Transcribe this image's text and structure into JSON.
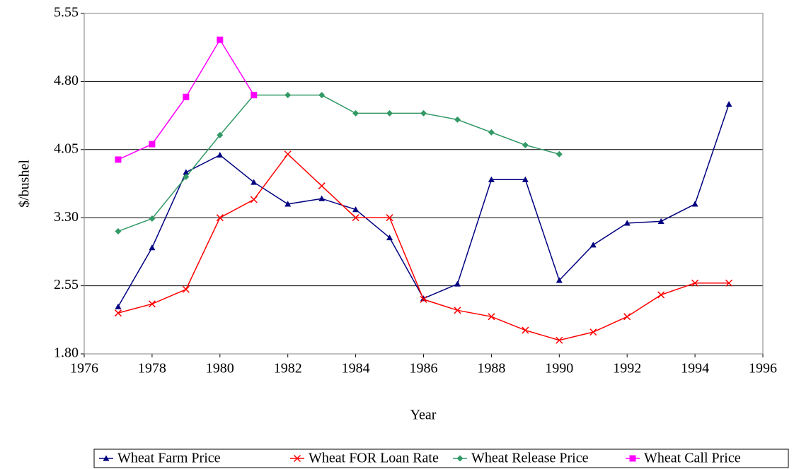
{
  "chart_data": {
    "type": "line",
    "x_label": "Year",
    "y_label": "$/bushel",
    "x": [
      1977,
      1978,
      1979,
      1980,
      1981,
      1982,
      1983,
      1984,
      1985,
      1986,
      1987,
      1988,
      1989,
      1990,
      1991,
      1992,
      1993,
      1994,
      1995
    ],
    "series": [
      {
        "name": "Wheat Farm Price",
        "color": "#000080",
        "marker": "triangle",
        "values": [
          2.32,
          2.97,
          3.8,
          3.99,
          3.69,
          3.45,
          3.51,
          3.39,
          3.08,
          2.41,
          2.57,
          3.72,
          3.72,
          2.61,
          3.0,
          3.24,
          3.26,
          3.45,
          4.55
        ]
      },
      {
        "name": "Wheat FOR Loan Rate",
        "color": "#ff0000",
        "marker": "x",
        "values": [
          2.25,
          2.35,
          2.51,
          3.3,
          3.5,
          4.0,
          3.65,
          3.3,
          3.3,
          2.4,
          2.28,
          2.21,
          2.06,
          1.95,
          2.04,
          2.21,
          2.45,
          2.58,
          2.58
        ]
      },
      {
        "name": "Wheat Release Price",
        "color": "#339966",
        "marker": "diamond",
        "values": [
          3.15,
          3.29,
          3.75,
          4.21,
          4.65,
          4.65,
          4.65,
          4.45,
          4.45,
          4.45,
          4.38,
          4.24,
          4.1,
          4.0,
          null,
          null,
          null,
          null,
          null
        ]
      },
      {
        "name": "Wheat Call Price",
        "color": "#ff00ff",
        "marker": "square",
        "values": [
          3.94,
          4.11,
          4.63,
          5.26,
          4.65,
          null,
          null,
          null,
          null,
          null,
          null,
          null,
          null,
          null,
          null,
          null,
          null,
          null,
          null
        ]
      }
    ],
    "xlim": [
      1976,
      1996
    ],
    "xticks": [
      1976,
      1978,
      1980,
      1982,
      1984,
      1986,
      1988,
      1990,
      1992,
      1994,
      1996
    ],
    "ylim": [
      1.8,
      5.55
    ],
    "yticks": [
      {
        "value": 1.8,
        "label": "1.80"
      },
      2.55,
      {
        "value": 3.3,
        "label": "3.30"
      },
      4.05,
      {
        "value": 4.8,
        "label": "4.80"
      },
      5.55
    ],
    "grid": true,
    "legend": "bottom"
  }
}
